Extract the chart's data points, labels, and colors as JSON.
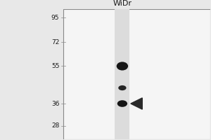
{
  "title": "WiDr",
  "mw_markers": [
    95,
    72,
    55,
    36,
    28
  ],
  "outer_bg": "#e8e8e8",
  "blot_bg_left": "#ffffff",
  "blot_bg_right": "#d0d0d0",
  "lane_bg": "#e0e0e0",
  "band_color": "#1a1a1a",
  "marker_color": "#1a1a1a",
  "arrow_color": "#2a2a2a",
  "border_color": "#888888",
  "band1_logmw": 1.74,
  "band2_logmw": 1.663,
  "band3_logmw": 1.556,
  "logmw_min": 1.38,
  "logmw_max": 2.02
}
